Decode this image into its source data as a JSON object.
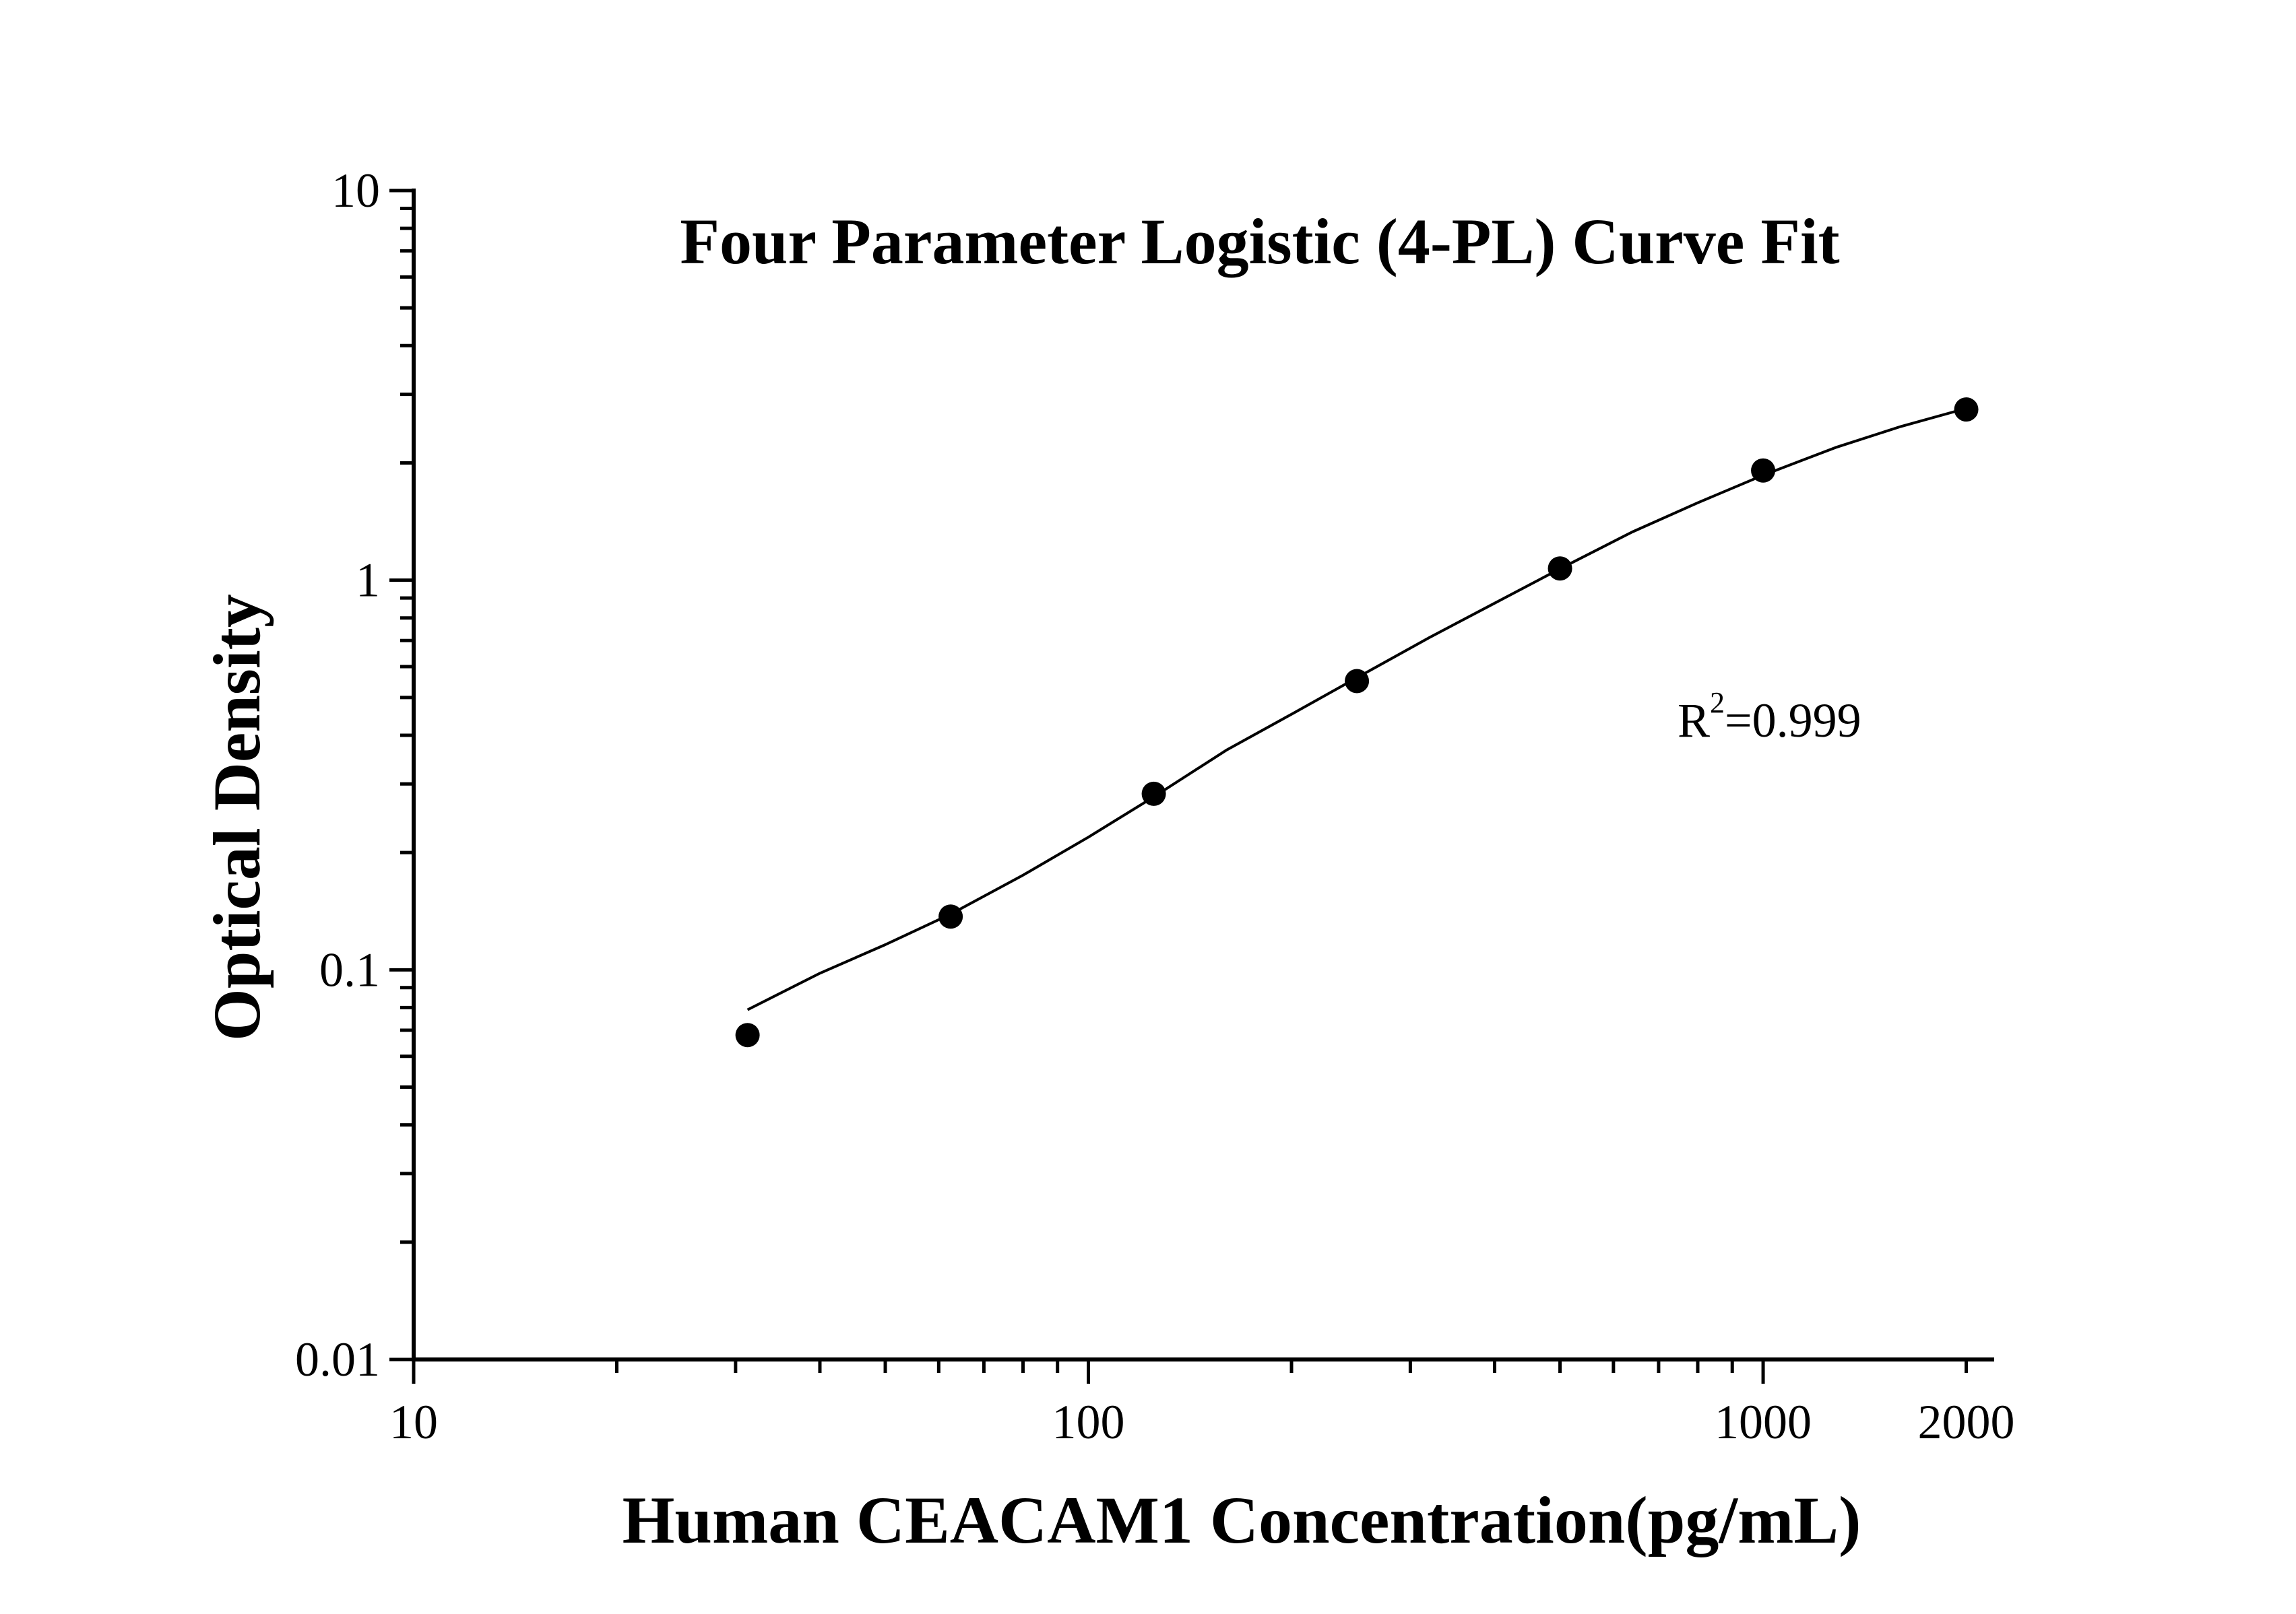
{
  "chart_data": {
    "type": "scatter",
    "title": "Four Parameter Logistic (4-PL) Curve Fit",
    "xlabel": "Human CEACAM1 Concentration(pg/mL)",
    "ylabel": "Optical Density",
    "x_scale": "log",
    "y_scale": "log",
    "xlim": [
      10,
      2200
    ],
    "ylim": [
      0.01,
      10
    ],
    "x_ticks": [
      {
        "value": 10,
        "label": "10"
      },
      {
        "value": 100,
        "label": "100"
      },
      {
        "value": 1000,
        "label": "1000"
      },
      {
        "value": 2000,
        "label": "2000"
      }
    ],
    "y_ticks": [
      {
        "value": 0.01,
        "label": "0.01"
      },
      {
        "value": 0.1,
        "label": "0.1"
      },
      {
        "value": 1,
        "label": "1"
      },
      {
        "value": 10,
        "label": "10"
      }
    ],
    "grid": false,
    "legend": "none",
    "series": [
      {
        "kind": "points",
        "x": [
          31.25,
          62.5,
          125,
          250,
          500,
          1000,
          2000
        ],
        "y": [
          0.068,
          0.137,
          0.283,
          0.551,
          1.072,
          1.912,
          2.743
        ]
      },
      {
        "kind": "fit-curve",
        "x": [
          31.25,
          40,
          50,
          62.5,
          80,
          100,
          125,
          160,
          200,
          250,
          320,
          400,
          500,
          640,
          800,
          1000,
          1280,
          1600,
          2000
        ],
        "y": [
          0.079,
          0.098,
          0.116,
          0.139,
          0.175,
          0.219,
          0.278,
          0.366,
          0.453,
          0.562,
          0.712,
          0.873,
          1.07,
          1.33,
          1.58,
          1.86,
          2.19,
          2.48,
          2.76
        ]
      }
    ],
    "annotation": {
      "base": "R",
      "sup": "2",
      "rest": "=0.999"
    },
    "colors": {
      "marks": "#000000",
      "background": "#ffffff"
    }
  }
}
